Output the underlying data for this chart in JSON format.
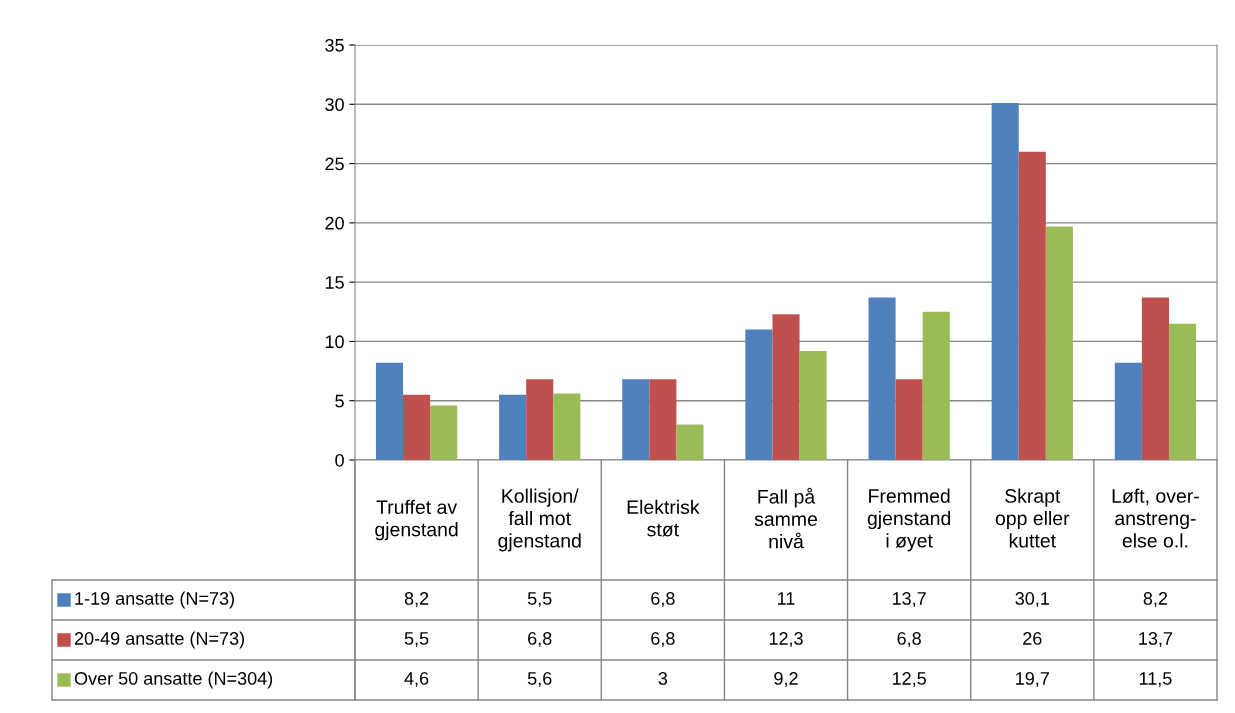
{
  "chart_data": {
    "type": "bar",
    "categories": [
      "Truffet av\ngjenstand",
      "Kollisjon/\nfall mot\ngjenstand",
      "Elektrisk\nstøt",
      "Fall på\nsamme\nnivå",
      "Fremmed\ngjenstand\ni øyet",
      "Skrapt\nopp eller\nkuttet",
      "Løft, over-\nanstreng-\nelse o.l."
    ],
    "series": [
      {
        "name": "1-19 ansatte (N=73)",
        "color": "#4f81bd",
        "values": [
          8.2,
          5.5,
          6.8,
          11,
          13.7,
          30.1,
          8.2
        ],
        "value_labels": [
          "8,2",
          "5,5",
          "6,8",
          "11",
          "13,7",
          "30,1",
          "8,2"
        ]
      },
      {
        "name": "20-49 ansatte (N=73)",
        "color": "#c0504d",
        "values": [
          5.5,
          6.8,
          6.8,
          12.3,
          6.8,
          26,
          13.7
        ],
        "value_labels": [
          "5,5",
          "6,8",
          "6,8",
          "12,3",
          "6,8",
          "26",
          "13,7"
        ]
      },
      {
        "name": "Over 50 ansatte (N=304)",
        "color": "#9bbb59",
        "values": [
          4.6,
          5.6,
          3,
          9.2,
          12.5,
          19.7,
          11.5
        ],
        "value_labels": [
          "4,6",
          "5,6",
          "3",
          "9,2",
          "12,5",
          "19,7",
          "11,5"
        ]
      }
    ],
    "ylim": [
      0,
      35
    ],
    "yticks": [
      0,
      5,
      10,
      15,
      20,
      25,
      30,
      35
    ],
    "grid": "y",
    "legend": "bottom"
  }
}
